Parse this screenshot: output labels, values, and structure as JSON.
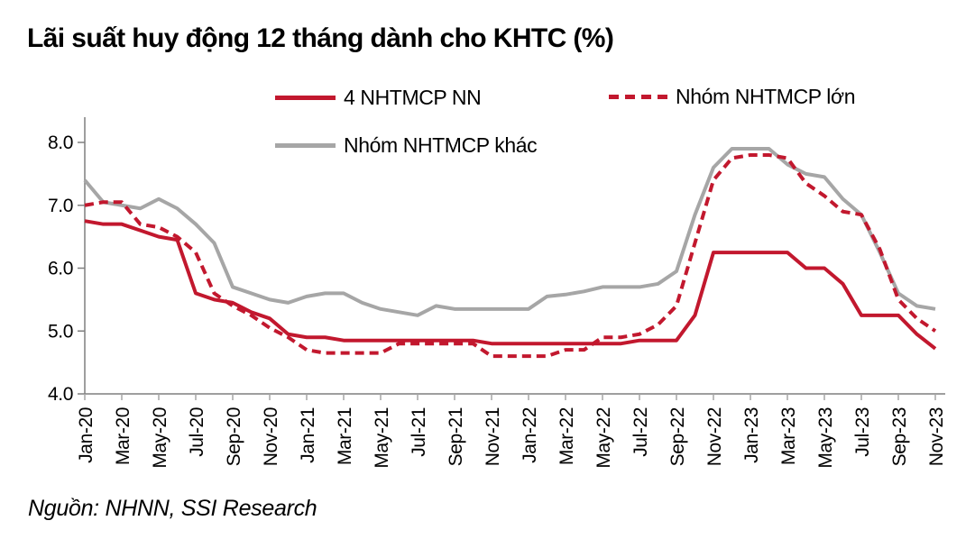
{
  "title": "Lãi suất huy động 12 tháng dành cho KHTC (%)",
  "source_note": "Nguồn: NHNN, SSI Research",
  "colors": {
    "series_red": "#C2182E",
    "series_gray": "#A6A6A6",
    "axis_line": "#7F7F7F",
    "x_tick": "#A6A6A6",
    "label_text": "#000000",
    "background": "#FFFFFF"
  },
  "legend": {
    "items": [
      {
        "label": "4 NHTMCP NN",
        "style": "solid",
        "color": "#C2182E",
        "slug": "4-nhtmcp-nn"
      },
      {
        "label": "Nhóm NHTMCP lớn",
        "style": "dashed",
        "color": "#C2182E",
        "slug": "nhom-nhtmcp-lon"
      },
      {
        "label": "Nhóm NHTMCP khác",
        "style": "solid",
        "color": "#A6A6A6",
        "slug": "nhom-nhtmcp-khac"
      }
    ]
  },
  "chart_data": {
    "type": "line",
    "title": "Lãi suất huy động 12 tháng dành cho KHTC (%)",
    "xlabel": "",
    "ylabel": "",
    "ylim": [
      4.0,
      8.0
    ],
    "grid": false,
    "legend_position": "top",
    "yticks": [
      4,
      5,
      6,
      7,
      8
    ],
    "ytick_labels": [
      "4.0",
      "5.0",
      "6.0",
      "7.0",
      "8.0"
    ],
    "x": [
      "Jan-20",
      "Feb-20",
      "Mar-20",
      "Apr-20",
      "May-20",
      "Jun-20",
      "Jul-20",
      "Aug-20",
      "Sep-20",
      "Oct-20",
      "Nov-20",
      "Dec-20",
      "Jan-21",
      "Feb-21",
      "Mar-21",
      "Apr-21",
      "May-21",
      "Jun-21",
      "Jul-21",
      "Aug-21",
      "Sep-21",
      "Oct-21",
      "Nov-21",
      "Dec-21",
      "Jan-22",
      "Feb-22",
      "Mar-22",
      "Apr-22",
      "May-22",
      "Jun-22",
      "Jul-22",
      "Aug-22",
      "Sep-22",
      "Oct-22",
      "Nov-22",
      "Dec-22",
      "Jan-23",
      "Feb-23",
      "Mar-23",
      "Apr-23",
      "May-23",
      "Jun-23",
      "Jul-23",
      "Aug-23",
      "Sep-23",
      "Oct-23",
      "Nov-23"
    ],
    "x_tick_labels": [
      "Jan-20",
      "Mar-20",
      "May-20",
      "Jul-20",
      "Sep-20",
      "Nov-20",
      "Jan-21",
      "Mar-21",
      "May-21",
      "Jul-21",
      "Sep-21",
      "Nov-21",
      "Jan-22",
      "Mar-22",
      "May-22",
      "Jul-22",
      "Sep-22",
      "Nov-22",
      "Jan-23",
      "Mar-23",
      "May-23",
      "Jul-23",
      "Sep-23",
      "Nov-23"
    ],
    "series": [
      {
        "name": "4 NHTMCP NN",
        "slug": "4-nhtmcp-nn",
        "color": "#C2182E",
        "dash": false,
        "values": [
          6.75,
          6.7,
          6.7,
          6.6,
          6.5,
          6.45,
          5.6,
          5.5,
          5.45,
          5.3,
          5.2,
          4.95,
          4.9,
          4.9,
          4.85,
          4.85,
          4.85,
          4.85,
          4.85,
          4.85,
          4.85,
          4.85,
          4.8,
          4.8,
          4.8,
          4.8,
          4.8,
          4.8,
          4.8,
          4.8,
          4.85,
          4.85,
          4.85,
          5.25,
          6.25,
          6.25,
          6.25,
          6.25,
          6.25,
          6.0,
          6.0,
          5.75,
          5.25,
          5.25,
          5.25,
          4.95,
          4.72
        ]
      },
      {
        "name": "Nhóm NHTMCP lớn",
        "slug": "nhom-nhtmcp-lon",
        "color": "#C2182E",
        "dash": true,
        "values": [
          7.0,
          7.05,
          7.05,
          6.7,
          6.65,
          6.5,
          6.25,
          5.6,
          5.4,
          5.25,
          5.05,
          4.9,
          4.7,
          4.65,
          4.65,
          4.65,
          4.65,
          4.8,
          4.8,
          4.8,
          4.8,
          4.8,
          4.6,
          4.6,
          4.6,
          4.6,
          4.7,
          4.7,
          4.9,
          4.9,
          4.95,
          5.1,
          5.4,
          6.4,
          7.4,
          7.75,
          7.8,
          7.8,
          7.75,
          7.35,
          7.15,
          6.9,
          6.85,
          6.3,
          5.5,
          5.2,
          5.0
        ]
      },
      {
        "name": "Nhóm NHTMCP khác",
        "slug": "nhom-nhtmcp-khac",
        "color": "#A6A6A6",
        "dash": false,
        "values": [
          7.4,
          7.05,
          7.0,
          6.95,
          7.1,
          6.95,
          6.7,
          6.4,
          5.7,
          5.6,
          5.5,
          5.45,
          5.55,
          5.6,
          5.6,
          5.45,
          5.35,
          5.3,
          5.25,
          5.4,
          5.35,
          5.35,
          5.35,
          5.35,
          5.35,
          5.55,
          5.58,
          5.63,
          5.7,
          5.7,
          5.7,
          5.75,
          5.95,
          6.85,
          7.6,
          7.9,
          7.9,
          7.9,
          7.65,
          7.5,
          7.45,
          7.1,
          6.85,
          6.25,
          5.6,
          5.4,
          5.35
        ]
      }
    ]
  }
}
